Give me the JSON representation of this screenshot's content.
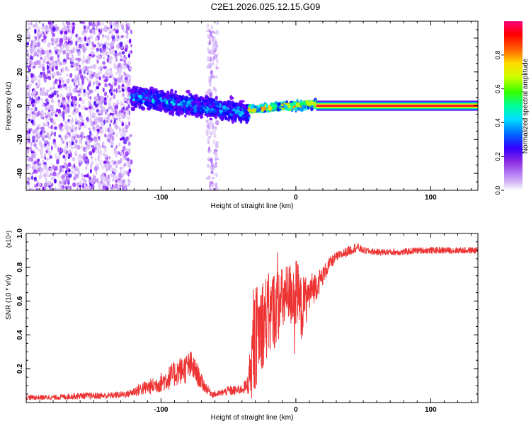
{
  "title": "C2E1.2026.025.12.15.G09",
  "chart_data": [
    {
      "type": "heatmap",
      "xlabel": "Height of straight line (km)",
      "ylabel": "Frequency (Hz)",
      "xlim": [
        -200,
        135
      ],
      "ylim": [
        -50,
        50
      ],
      "xticks": [
        -100,
        0,
        100
      ],
      "xtick_labels": [
        "-100",
        "0",
        "100"
      ],
      "yticks": [
        -40,
        -20,
        0,
        20,
        40
      ],
      "ytick_labels": [
        "-40",
        "-20",
        "0",
        "20",
        "40"
      ],
      "colorbar": {
        "label": "Normalized spectral amplitude",
        "range": [
          0,
          1
        ],
        "ticks": [
          0.0,
          0.2,
          0.4,
          0.6,
          0.8
        ],
        "tick_labels": [
          "0.0",
          "0.2",
          "0.4",
          "0.6",
          "0.8"
        ],
        "colors": [
          "#ffffff",
          "#c69cf5",
          "#7b00ff",
          "#0000ff",
          "#00ffff",
          "#00ff66",
          "#ccff00",
          "#ffdd00",
          "#ff5500",
          "#ff0000",
          "#ff0077"
        ]
      },
      "regions": [
        {
          "name": "scattered-noise",
          "x_range": [
            -200,
            -122
          ],
          "freq_spread_hz": 50,
          "amplitude": [
            0.05,
            0.25
          ]
        },
        {
          "name": "vertical-streak",
          "x_range": [
            -66,
            -58
          ],
          "freq_spread_hz": 50,
          "amplitude": [
            0.05,
            0.15
          ]
        },
        {
          "name": "main-band",
          "x_range": [
            -122,
            -35
          ],
          "center_freq_hz": [
            5,
            -4
          ],
          "half_width_hz": 8,
          "amplitude": [
            0.2,
            0.45
          ]
        },
        {
          "name": "transition",
          "x_range": [
            -35,
            15
          ],
          "center_freq_hz": [
            -2,
            1
          ],
          "half_width_hz": 3,
          "amplitude": [
            0.3,
            0.9
          ]
        },
        {
          "name": "steady-line",
          "x_range": [
            15,
            135
          ],
          "center_freq_hz": 0,
          "half_width_hz": 3,
          "amplitude": 1.0
        }
      ]
    },
    {
      "type": "line",
      "xlabel": "Height of straight line (km)",
      "ylabel": "SNR (10 * v/v)",
      "multiplier_label": "(x10⁴)",
      "xlim": [
        -200,
        135
      ],
      "ylim": [
        0,
        1.0
      ],
      "xticks": [
        -100,
        0,
        100
      ],
      "xtick_labels": [
        "-100",
        "0",
        "100"
      ],
      "yticks": [
        0.2,
        0.4,
        0.6,
        0.8,
        1.0
      ],
      "ytick_labels": [
        "0.2",
        "0.4",
        "0.6",
        "0.8",
        "1.0"
      ],
      "series": [
        {
          "name": "SNR",
          "color": "#ee3333",
          "x": [
            -200,
            -180,
            -160,
            -140,
            -125,
            -115,
            -105,
            -95,
            -88,
            -82,
            -78,
            -74,
            -70,
            -66,
            -62,
            -58,
            -54,
            -50,
            -45,
            -40,
            -36,
            -33,
            -31,
            -29,
            -27,
            -25,
            -22,
            -19,
            -16,
            -13,
            -10,
            -7,
            -4,
            -1,
            1,
            4,
            7,
            10,
            13,
            16,
            20,
            25,
            30,
            35,
            40,
            45,
            50,
            60,
            70,
            80,
            90,
            100,
            110,
            120,
            135
          ],
          "y": [
            0.03,
            0.03,
            0.04,
            0.04,
            0.05,
            0.08,
            0.1,
            0.14,
            0.18,
            0.2,
            0.22,
            0.18,
            0.12,
            0.08,
            0.05,
            0.05,
            0.06,
            0.07,
            0.07,
            0.08,
            0.1,
            0.22,
            0.35,
            0.4,
            0.45,
            0.48,
            0.5,
            0.52,
            0.55,
            0.58,
            0.6,
            0.62,
            0.64,
            0.66,
            0.62,
            0.55,
            0.6,
            0.64,
            0.68,
            0.7,
            0.75,
            0.82,
            0.86,
            0.88,
            0.9,
            0.92,
            0.9,
            0.89,
            0.89,
            0.89,
            0.9,
            0.9,
            0.9,
            0.9,
            0.9
          ],
          "noise_amplitude": [
            0.015,
            0.015,
            0.02,
            0.02,
            0.02,
            0.04,
            0.05,
            0.07,
            0.08,
            0.09,
            0.09,
            0.07,
            0.05,
            0.03,
            0.02,
            0.02,
            0.02,
            0.03,
            0.03,
            0.03,
            0.05,
            0.2,
            0.3,
            0.3,
            0.28,
            0.28,
            0.26,
            0.25,
            0.24,
            0.22,
            0.2,
            0.2,
            0.2,
            0.22,
            0.22,
            0.2,
            0.15,
            0.12,
            0.1,
            0.08,
            0.06,
            0.04,
            0.03,
            0.03,
            0.03,
            0.03,
            0.02,
            0.02,
            0.02,
            0.02,
            0.02,
            0.02,
            0.02,
            0.02,
            0.02
          ]
        }
      ]
    }
  ]
}
